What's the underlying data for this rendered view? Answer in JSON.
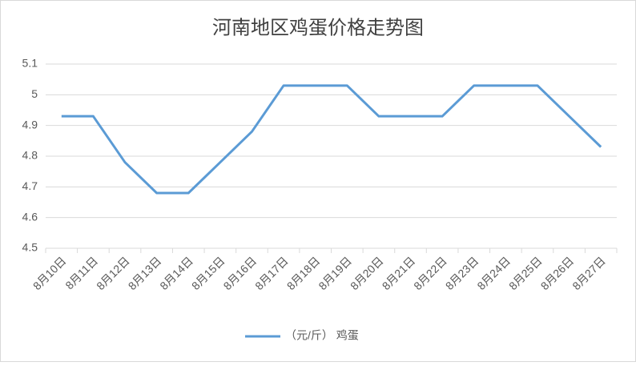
{
  "chart_data": {
    "type": "line",
    "title": "河南地区鸡蛋价格走势图",
    "categories": [
      "8月10日",
      "8月11日",
      "8月12日",
      "8月13日",
      "8月14日",
      "8月15日",
      "8月16日",
      "8月17日",
      "8月18日",
      "8月19日",
      "8月20日",
      "8月21日",
      "8月22日",
      "8月23日",
      "8月24日",
      "8月25日",
      "8月26日",
      "8月27日"
    ],
    "series": [
      {
        "name": "（元/斤） 鸡蛋",
        "color": "#5b9bd5",
        "values": [
          4.93,
          4.93,
          4.78,
          4.68,
          4.68,
          4.78,
          4.88,
          5.03,
          5.03,
          5.03,
          4.93,
          4.93,
          4.93,
          5.03,
          5.03,
          5.03,
          4.93,
          4.83
        ]
      }
    ],
    "ylim": [
      4.5,
      5.1
    ],
    "yticks": [
      4.5,
      4.6,
      4.7,
      4.8,
      4.9,
      5,
      5.1
    ],
    "grid": true,
    "legend": "bottom"
  }
}
